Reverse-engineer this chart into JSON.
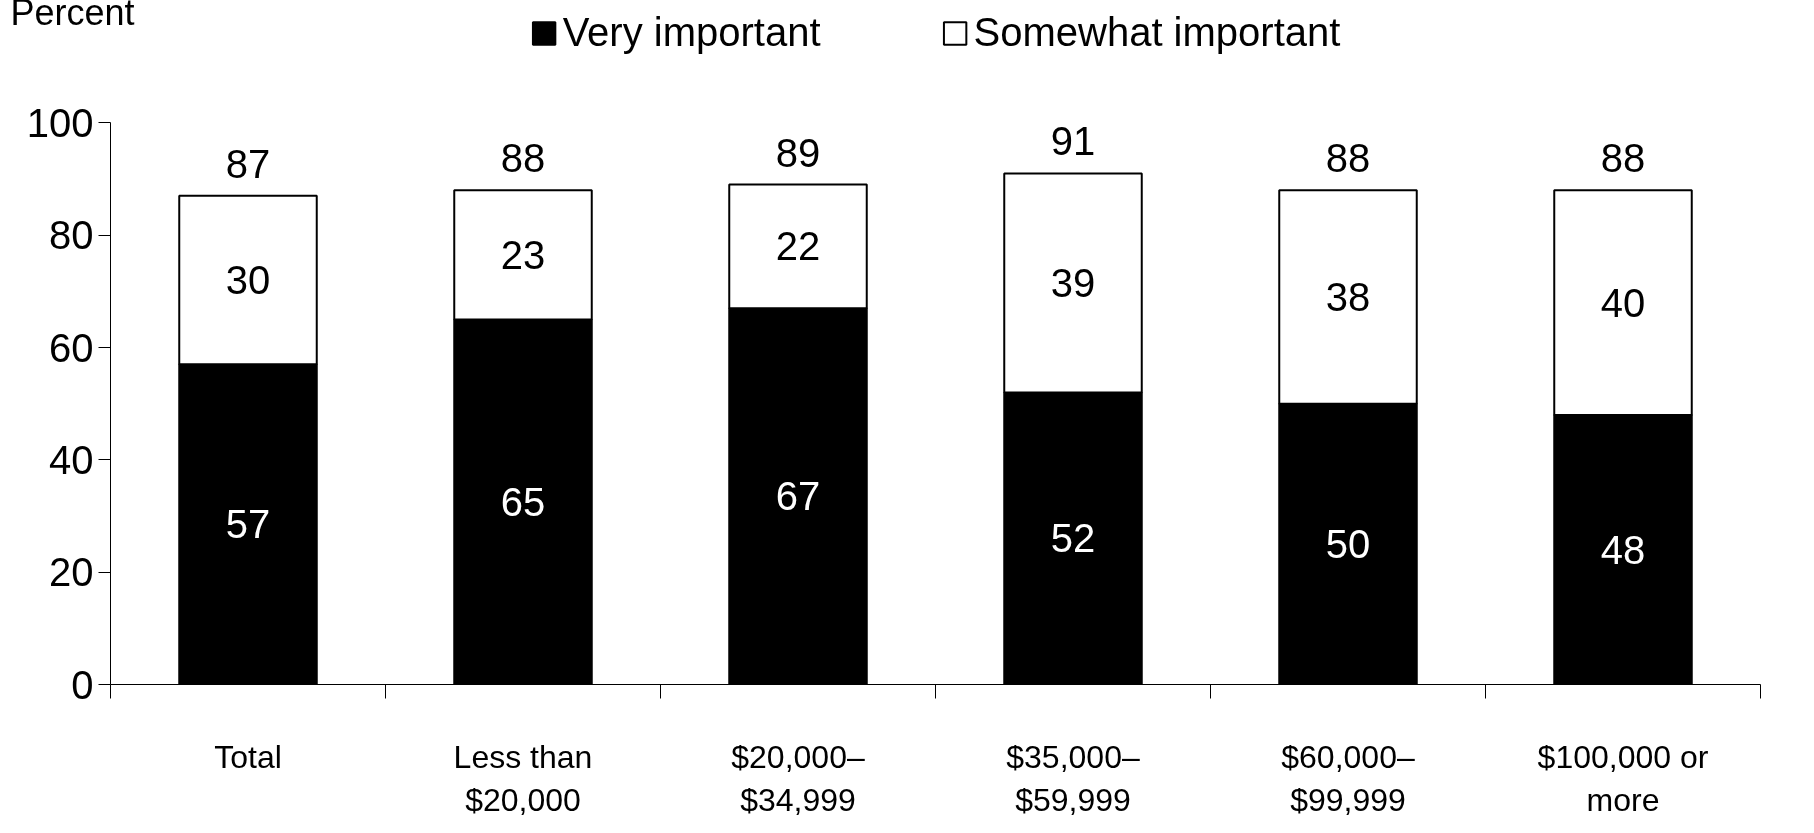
{
  "chart_data": {
    "type": "bar",
    "stacked": true,
    "ylabel": "Percent",
    "categories": [
      "Total",
      "Less than\n$20,000",
      "$20,000–\n$34,999",
      "$35,000–\n$59,999",
      "$60,000–\n$99,999",
      "$100,000 or\nmore"
    ],
    "series": [
      {
        "name": "Very important",
        "color": "#000000",
        "values": [
          57,
          65,
          67,
          52,
          50,
          48
        ]
      },
      {
        "name": "Somewhat important",
        "color": "#ffffff",
        "values": [
          30,
          23,
          22,
          39,
          38,
          40
        ]
      }
    ],
    "totals": [
      "87",
      "88",
      "89",
      "91",
      "88",
      "88"
    ],
    "data_labels": true,
    "ylim": [
      0,
      100
    ],
    "yticks": [
      0,
      20,
      40,
      60,
      80,
      100
    ],
    "grid": false,
    "legend": "top"
  }
}
